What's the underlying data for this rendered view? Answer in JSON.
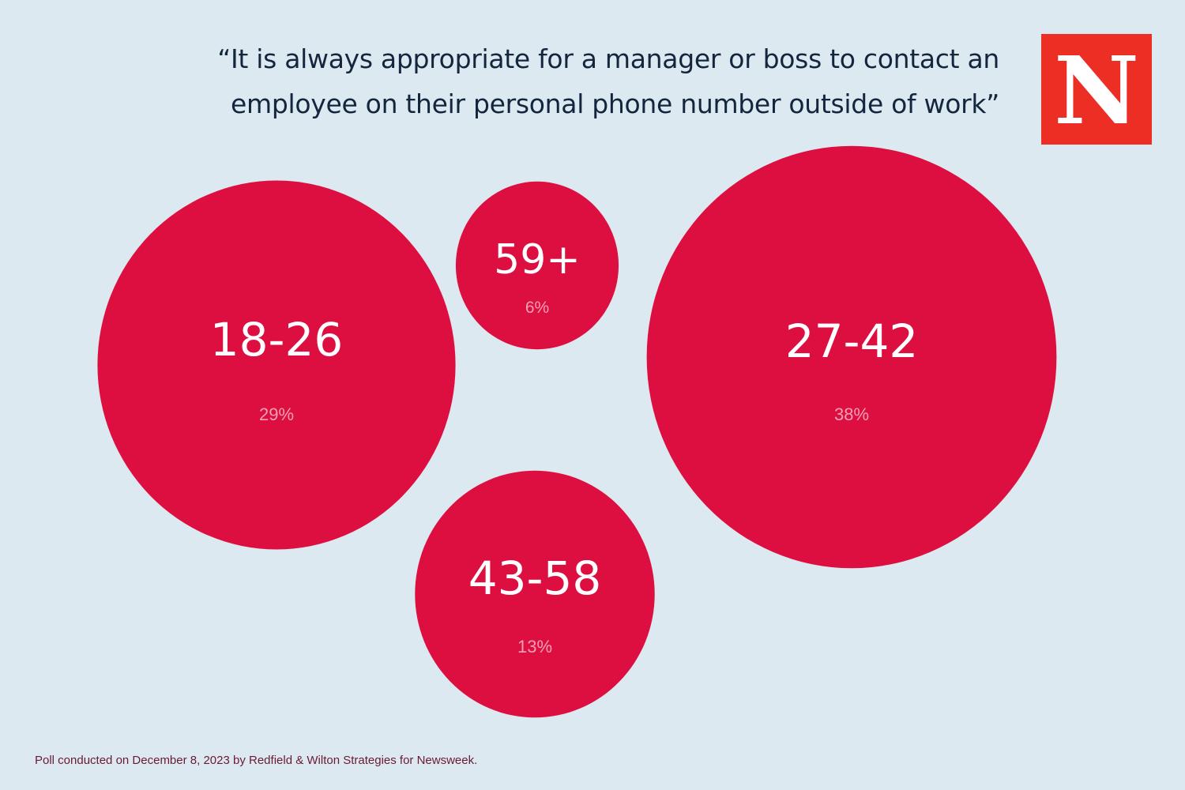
{
  "title": "“It is always appropriate for a manager or boss to contact an employee on their personal phone number outside of work”",
  "logo": {
    "letter": "N"
  },
  "footnote": "Poll conducted on December 8, 2023 by Redfield & Wilton Strategies for Newsweek.",
  "colors": {
    "background": "#dde9f1",
    "bubble": "#dd0f40",
    "label": "#ffffff",
    "value": "#f2a0b4",
    "logo": "#ec2e25"
  },
  "chart_data": {
    "type": "bubble",
    "title": "“It is always appropriate for a manager or boss to contact an employee on their personal phone number outside of work”",
    "unit": "%",
    "categories": [
      "18-26",
      "59+",
      "27-42",
      "43-58"
    ],
    "values": [
      29,
      6,
      38,
      13
    ],
    "value_labels": [
      "29%",
      "6%",
      "38%",
      "13%"
    ]
  }
}
